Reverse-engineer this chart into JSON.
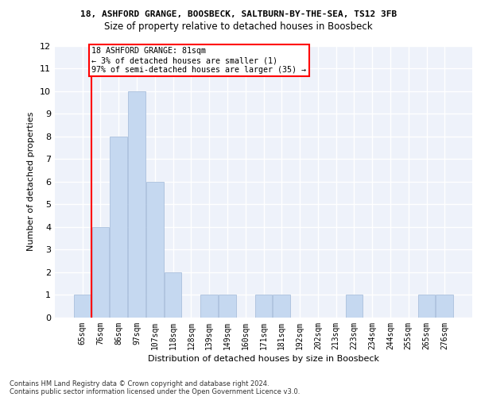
{
  "title1": "18, ASHFORD GRANGE, BOOSBECK, SALTBURN-BY-THE-SEA, TS12 3FB",
  "title2": "Size of property relative to detached houses in Boosbeck",
  "xlabel": "Distribution of detached houses by size in Boosbeck",
  "ylabel": "Number of detached properties",
  "categories": [
    "65sqm",
    "76sqm",
    "86sqm",
    "97sqm",
    "107sqm",
    "118sqm",
    "128sqm",
    "139sqm",
    "149sqm",
    "160sqm",
    "171sqm",
    "181sqm",
    "192sqm",
    "202sqm",
    "213sqm",
    "223sqm",
    "234sqm",
    "244sqm",
    "255sqm",
    "265sqm",
    "276sqm"
  ],
  "values": [
    1,
    4,
    8,
    10,
    6,
    2,
    0,
    1,
    1,
    0,
    1,
    1,
    0,
    0,
    0,
    1,
    0,
    0,
    0,
    1,
    1
  ],
  "bar_color": "#c5d8f0",
  "bar_edgecolor": "#a0b8d8",
  "annotation_text": "18 ASHFORD GRANGE: 81sqm\n← 3% of detached houses are smaller (1)\n97% of semi-detached houses are larger (35) →",
  "annotation_box_color": "white",
  "annotation_box_edgecolor": "red",
  "ylim": [
    0,
    12
  ],
  "yticks": [
    0,
    1,
    2,
    3,
    4,
    5,
    6,
    7,
    8,
    9,
    10,
    11,
    12
  ],
  "footnote1": "Contains HM Land Registry data © Crown copyright and database right 2024.",
  "footnote2": "Contains public sector information licensed under the Open Government Licence v3.0.",
  "bg_color": "#eef2fa",
  "grid_color": "#ffffff"
}
